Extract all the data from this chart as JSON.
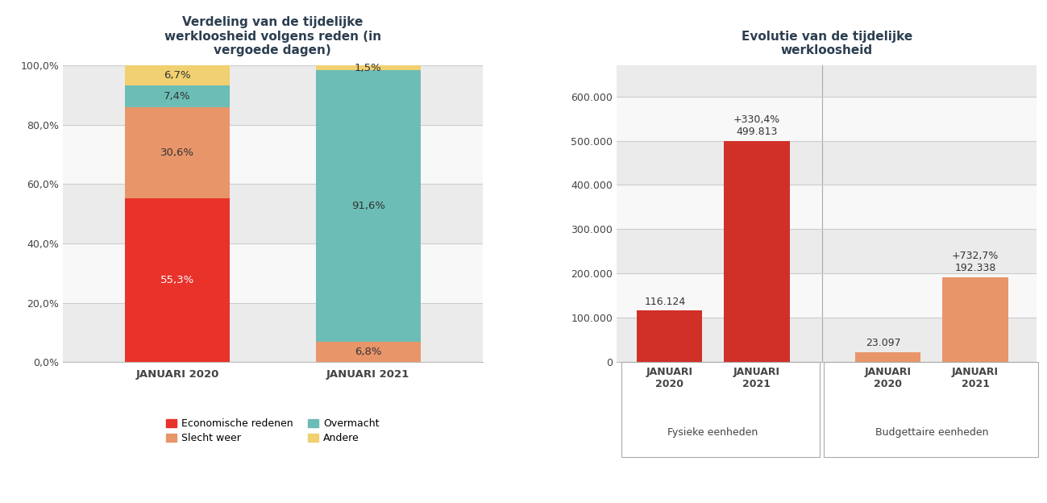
{
  "left_title": "Verdeling van de tijdelijke\nwerkloosheid volgens reden (in\nvergoede dagen)",
  "right_title": "Evolutie van de tijdelijke\nwerkloosheid",
  "stacked_categories": [
    "JANUARI 2020",
    "JANUARI 2021"
  ],
  "stacked_data": {
    "Economische redenen": [
      55.3,
      0.0
    ],
    "Slecht weer": [
      30.6,
      6.8
    ],
    "Overmacht": [
      7.4,
      91.6
    ],
    "Andere": [
      6.7,
      1.5
    ]
  },
  "stacked_colors": {
    "Economische redenen": "#E8322A",
    "Slecht weer": "#E8956A",
    "Overmacht": "#6BBDB5",
    "Andere": "#F0D070"
  },
  "bar_values": [
    116124,
    499813,
    23097,
    192338
  ],
  "bar_colors": [
    "#D03028",
    "#D03028",
    "#E8956A",
    "#E8956A"
  ],
  "bar_labels": [
    "116.124",
    "499.813",
    "23.097",
    "192.338"
  ],
  "group_labels": [
    "Fysieke eenheden",
    "Budgettaire eenheden"
  ],
  "yticks_left": [
    0,
    20,
    40,
    60,
    80,
    100
  ],
  "ytick_labels_left": [
    "0,0%",
    "20,0%",
    "40,0%",
    "60,0%",
    "80,0%",
    "100,0%"
  ],
  "yticks_right": [
    0,
    100000,
    200000,
    300000,
    400000,
    500000,
    600000
  ],
  "ytick_labels_right": [
    "0",
    "100.000",
    "200.000",
    "300.000",
    "400.000",
    "500.000",
    "600.000"
  ],
  "background_color": "#FFFFFF",
  "grid_color_dark": "#DDDDDD",
  "grid_color_light": "#F0F0F0",
  "title_color": "#2C3E50",
  "label_color": "#333333",
  "axis_tick_color": "#444444",
  "legend_items": [
    "Economische redenen",
    "Slecht weer",
    "Overmacht",
    "Andere"
  ]
}
